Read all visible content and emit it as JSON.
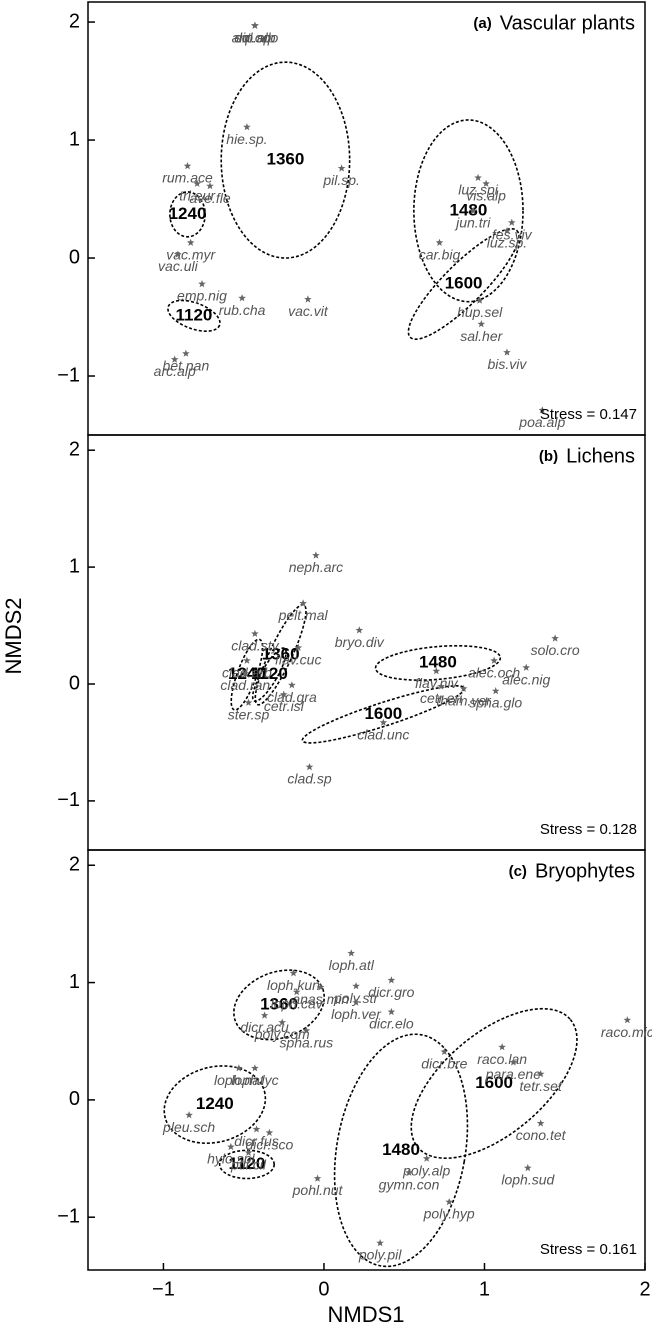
{
  "xlabel": "NMDS1",
  "ylabel": "NMDS2",
  "chart_data": [
    {
      "type": "scatter",
      "tag": "(a)",
      "title": "Vascular plants",
      "stress": "Stress = 0.147",
      "xlim": [
        -1.47,
        2
      ],
      "ylim": [
        -1.5,
        2.17
      ],
      "yticks": [
        {
          "value": -1,
          "label": "−1"
        },
        0,
        1,
        2
      ],
      "points": [
        {
          "name": "ant.odo",
          "x": -0.43,
          "y": 1.97
        },
        {
          "name": "hie.sp.",
          "x": -0.48,
          "y": 1.11
        },
        {
          "name": "rum.ace",
          "x": -0.85,
          "y": 0.78
        },
        {
          "name": "tri.eur",
          "x": -0.79,
          "y": 0.63
        },
        {
          "name": "ave.fle",
          "x": -0.71,
          "y": 0.61
        },
        {
          "name": "pil.sp.",
          "x": 0.11,
          "y": 0.76
        },
        {
          "name": "vis.alp",
          "x": 1.01,
          "y": 0.63
        },
        {
          "name": "luz.spi",
          "x": 0.96,
          "y": 0.68
        },
        {
          "name": "jun.tri",
          "x": 0.93,
          "y": 0.4
        },
        {
          "name": "fes.viv",
          "x": 1.17,
          "y": 0.3
        },
        {
          "name": "luz.sp.",
          "x": 1.14,
          "y": 0.23
        },
        {
          "name": "car.big",
          "x": 0.72,
          "y": 0.13
        },
        {
          "name": "vac.myr",
          "x": -0.83,
          "y": 0.13
        },
        {
          "name": "vac.uli",
          "x": -0.91,
          "y": 0.03
        },
        {
          "name": "emp.nig",
          "x": -0.76,
          "y": -0.22
        },
        {
          "name": "rub.cha",
          "x": -0.51,
          "y": -0.34
        },
        {
          "name": "vac.vit",
          "x": -0.1,
          "y": -0.35
        },
        {
          "name": "hup.sel",
          "x": 0.97,
          "y": -0.36
        },
        {
          "name": "sal.her",
          "x": 0.98,
          "y": -0.56
        },
        {
          "name": "bis.viv",
          "x": 1.14,
          "y": -0.8
        },
        {
          "name": "bet.nan",
          "x": -0.86,
          "y": -0.81
        },
        {
          "name": "arc.alp",
          "x": -0.93,
          "y": -0.86
        },
        {
          "name": "poa.alp",
          "x": 1.36,
          "y": -1.29
        },
        {
          "name": "dip.alp",
          "x": -0.43,
          "y": 1.97
        },
        {
          "name": "sol.sp.",
          "x": -0.43,
          "y": 1.97
        }
      ],
      "groups": [
        {
          "name": "1360",
          "cx": -0.24,
          "cy": 0.83,
          "rx": 0.4,
          "ry": 0.83,
          "angle": 0
        },
        {
          "name": "1240",
          "cx": -0.85,
          "cy": 0.37,
          "rx": 0.11,
          "ry": 0.19,
          "angle": 0
        },
        {
          "name": "1120",
          "cx": -0.81,
          "cy": -0.49,
          "rx": 0.17,
          "ry": 0.11,
          "angle": 20
        },
        {
          "name": "1480",
          "cx": 0.9,
          "cy": 0.4,
          "rx": 0.34,
          "ry": 0.77,
          "angle": 0
        },
        {
          "name": "1600",
          "cx": 0.87,
          "cy": -0.22,
          "rx": 0.47,
          "ry": 0.17,
          "angle": -45
        }
      ]
    },
    {
      "type": "scatter",
      "tag": "(b)",
      "title": "Lichens",
      "stress": "Stress = 0.128",
      "xlim": [
        -1.47,
        2
      ],
      "ylim": [
        -1.42,
        2.13
      ],
      "yticks": [
        {
          "value": -1,
          "label": "−1"
        },
        0,
        1,
        2
      ],
      "points": [
        {
          "name": "neph.arc",
          "x": -0.05,
          "y": 1.1
        },
        {
          "name": "pelt.mal",
          "x": -0.13,
          "y": 0.69
        },
        {
          "name": "clad.sty",
          "x": -0.43,
          "y": 0.43
        },
        {
          "name": "clad.arb",
          "x": -0.48,
          "y": 0.2
        },
        {
          "name": "clad.ran",
          "x": -0.49,
          "y": 0.09
        },
        {
          "name": "flav.cuc",
          "x": -0.16,
          "y": 0.31
        },
        {
          "name": "bryo.div",
          "x": 0.22,
          "y": 0.46
        },
        {
          "name": "flav.niv",
          "x": 0.7,
          "y": 0.11
        },
        {
          "name": "alec.och",
          "x": 1.06,
          "y": 0.2
        },
        {
          "name": "solo.cro",
          "x": 1.44,
          "y": 0.39
        },
        {
          "name": "alec.nig",
          "x": 1.26,
          "y": 0.14
        },
        {
          "name": "spha.glo",
          "x": 1.07,
          "y": -0.06
        },
        {
          "name": "tham.ver",
          "x": 0.87,
          "y": -0.04
        },
        {
          "name": "cetr.eri",
          "x": 0.73,
          "y": -0.02
        },
        {
          "name": "clad.gra",
          "x": -0.2,
          "y": -0.01
        },
        {
          "name": "cetr.isl",
          "x": -0.25,
          "y": -0.09
        },
        {
          "name": "ster.sp",
          "x": -0.47,
          "y": -0.16
        },
        {
          "name": "clad.unc",
          "x": 0.37,
          "y": -0.33
        },
        {
          "name": "clad.sp",
          "x": -0.09,
          "y": -0.71
        }
      ],
      "groups": [
        {
          "name": "1360",
          "cx": -0.27,
          "cy": 0.25,
          "rx": 0.07,
          "ry": 0.47,
          "angle": 25
        },
        {
          "name": "1240",
          "cx": -0.48,
          "cy": 0.08,
          "rx": 0.06,
          "ry": 0.32,
          "angle": 20
        },
        {
          "name": "1120",
          "cx": -0.34,
          "cy": 0.08,
          "rx": 0.05,
          "ry": 0.26,
          "angle": 30
        },
        {
          "name": "1480",
          "cx": 0.71,
          "cy": 0.18,
          "rx": 0.39,
          "ry": 0.14,
          "angle": -5
        },
        {
          "name": "1600",
          "cx": 0.37,
          "cy": -0.26,
          "rx": 0.53,
          "ry": 0.1,
          "angle": -18
        }
      ]
    },
    {
      "type": "scatter",
      "tag": "(c)",
      "title": "Bryophytes",
      "stress": "Stress = 0.161",
      "xlim": [
        -1.47,
        2
      ],
      "ylim": [
        -1.45,
        2.13
      ],
      "xticks": [
        {
          "value": -1,
          "label": "−1"
        },
        0,
        1,
        2
      ],
      "yticks": [
        {
          "value": -1,
          "label": "−1"
        },
        0,
        1,
        2
      ],
      "points": [
        {
          "name": "loph.atl",
          "x": 0.17,
          "y": 1.25
        },
        {
          "name": "anas.min",
          "x": -0.02,
          "y": 0.96
        },
        {
          "name": "loph.kun",
          "x": -0.19,
          "y": 1.08
        },
        {
          "name": "loph.cav",
          "x": -0.17,
          "y": 0.92
        },
        {
          "name": "poly.str",
          "x": 0.2,
          "y": 0.97
        },
        {
          "name": "dicr.gro",
          "x": 0.42,
          "y": 1.02
        },
        {
          "name": "loph.ver",
          "x": 0.2,
          "y": 0.83
        },
        {
          "name": "dicr.acu",
          "x": -0.37,
          "y": 0.72
        },
        {
          "name": "poly.com",
          "x": -0.26,
          "y": 0.66
        },
        {
          "name": "spha.rus",
          "x": -0.11,
          "y": 0.59
        },
        {
          "name": "dicr.elo",
          "x": 0.42,
          "y": 0.75
        },
        {
          "name": "dicr.bre",
          "x": 0.75,
          "y": 0.41
        },
        {
          "name": "raco.lan",
          "x": 1.11,
          "y": 0.45
        },
        {
          "name": "para.ene",
          "x": 1.18,
          "y": 0.32
        },
        {
          "name": "tetr.set",
          "x": 1.35,
          "y": 0.22
        },
        {
          "name": "raco.mic",
          "x": 1.89,
          "y": 0.68
        },
        {
          "name": "loph.nat",
          "x": -0.53,
          "y": 0.27
        },
        {
          "name": "loph.lyc",
          "x": -0.43,
          "y": 0.27
        },
        {
          "name": "pleu.sch",
          "x": -0.84,
          "y": -0.13
        },
        {
          "name": "dicr.fus",
          "x": -0.42,
          "y": -0.25
        },
        {
          "name": "dicr.sco",
          "x": -0.34,
          "y": -0.28
        },
        {
          "name": "hylo.spl",
          "x": -0.58,
          "y": -0.4
        },
        {
          "name": "ptil.cil",
          "x": -0.47,
          "y": -0.45
        },
        {
          "name": "poly.alp",
          "x": 0.64,
          "y": -0.5
        },
        {
          "name": "gymn.con",
          "x": 0.53,
          "y": -0.62
        },
        {
          "name": "cono.tet",
          "x": 1.35,
          "y": -0.2
        },
        {
          "name": "loph.sud",
          "x": 1.27,
          "y": -0.58
        },
        {
          "name": "pohl.nut",
          "x": -0.04,
          "y": -0.67
        },
        {
          "name": "poly.hyp",
          "x": 0.78,
          "y": -0.87
        },
        {
          "name": "poly.pil",
          "x": 0.35,
          "y": -1.22
        }
      ],
      "groups": [
        {
          "name": "1360",
          "cx": -0.28,
          "cy": 0.81,
          "rx": 0.29,
          "ry": 0.28,
          "angle": -20
        },
        {
          "name": "1240",
          "cx": -0.68,
          "cy": -0.04,
          "rx": 0.32,
          "ry": 0.32,
          "angle": -15
        },
        {
          "name": "1120",
          "cx": -0.48,
          "cy": -0.55,
          "rx": 0.17,
          "ry": 0.12,
          "angle": 0
        },
        {
          "name": "1480",
          "cx": 0.48,
          "cy": -0.43,
          "rx": 0.4,
          "ry": 1.0,
          "angle": 10
        },
        {
          "name": "1600",
          "cx": 1.06,
          "cy": 0.14,
          "rx": 0.62,
          "ry": 0.43,
          "angle": -40
        }
      ]
    }
  ]
}
